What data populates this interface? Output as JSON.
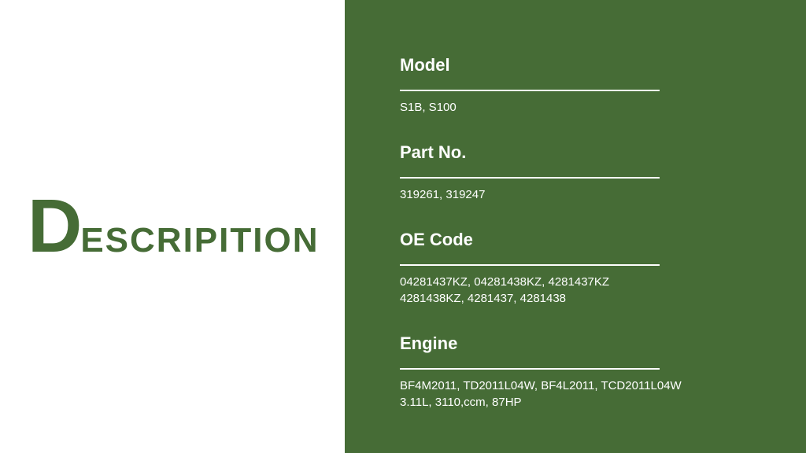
{
  "colors": {
    "green": "#466c36",
    "white": "#ffffff",
    "rule": "#ffffff"
  },
  "title": {
    "big_letter": "D",
    "rest": "ESCRIPITION",
    "big_fontsize": 96,
    "rest_fontsize": 44,
    "color": "#466c36"
  },
  "panel": {
    "bg": "#466c36",
    "text_color": "#ffffff",
    "label_fontsize": 22,
    "value_fontsize": 15,
    "rule_width": 330
  },
  "fields": [
    {
      "label": "Model",
      "value": "S1B, S100"
    },
    {
      "label": "Part No.",
      "value": "319261, 319247"
    },
    {
      "label": "OE Code",
      "value": "04281437KZ, 04281438KZ, 4281437KZ\n4281438KZ, 4281437, 4281438"
    },
    {
      "label": "Engine",
      "value": "BF4M2011, TD2011L04W, BF4L2011, TCD2011L04W\n3.11L, 3110,ccm, 87HP"
    }
  ]
}
